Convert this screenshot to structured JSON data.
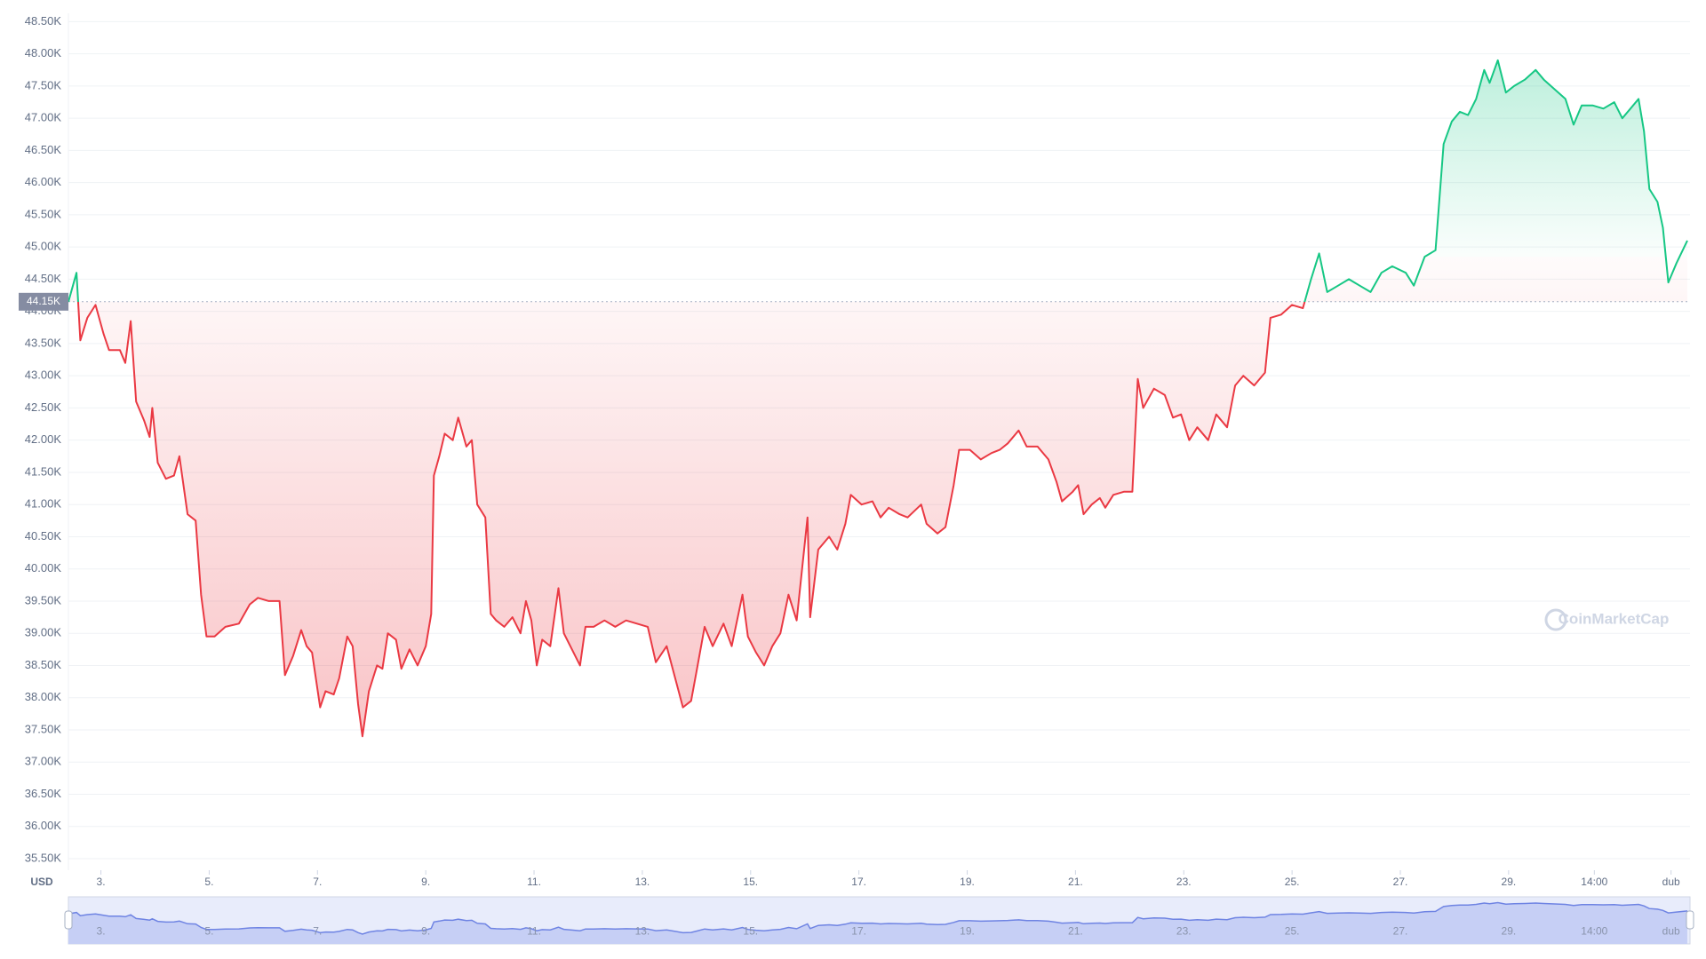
{
  "chart_data": {
    "type": "line",
    "currency": "USD",
    "watermark": "CoinMarketCap",
    "ylim": [
      35320,
      48630
    ],
    "xlim": [
      2.4,
      32.35
    ],
    "grid": true,
    "baseline": {
      "value": 44150,
      "label": "44.15K"
    },
    "up_color": "#16c784",
    "down_color": "#ea3943",
    "yticks": [
      {
        "value": 35500,
        "label": "35.50K"
      },
      {
        "value": 36000,
        "label": "36.00K"
      },
      {
        "value": 36500,
        "label": "36.50K"
      },
      {
        "value": 37000,
        "label": "37.00K"
      },
      {
        "value": 37500,
        "label": "37.50K"
      },
      {
        "value": 38000,
        "label": "38.00K"
      },
      {
        "value": 38500,
        "label": "38.50K"
      },
      {
        "value": 39000,
        "label": "39.00K"
      },
      {
        "value": 39500,
        "label": "39.50K"
      },
      {
        "value": 40000,
        "label": "40.00K"
      },
      {
        "value": 40500,
        "label": "40.50K"
      },
      {
        "value": 41000,
        "label": "41.00K"
      },
      {
        "value": 41500,
        "label": "41.50K"
      },
      {
        "value": 42000,
        "label": "42.00K"
      },
      {
        "value": 42500,
        "label": "42.50K"
      },
      {
        "value": 43000,
        "label": "43.00K"
      },
      {
        "value": 43500,
        "label": "43.50K"
      },
      {
        "value": 44000,
        "label": "44.00K"
      },
      {
        "value": 44500,
        "label": "44.50K"
      },
      {
        "value": 45000,
        "label": "45.00K"
      },
      {
        "value": 45500,
        "label": "45.50K"
      },
      {
        "value": 46000,
        "label": "46.00K"
      },
      {
        "value": 46500,
        "label": "46.50K"
      },
      {
        "value": 47000,
        "label": "47.00K"
      },
      {
        "value": 47500,
        "label": "47.50K"
      },
      {
        "value": 48000,
        "label": "48.00K"
      },
      {
        "value": 48500,
        "label": "48.50K"
      }
    ],
    "xticks": [
      {
        "value": 3,
        "label": "3."
      },
      {
        "value": 5,
        "label": "5."
      },
      {
        "value": 7,
        "label": "7."
      },
      {
        "value": 9,
        "label": "9."
      },
      {
        "value": 11,
        "label": "11."
      },
      {
        "value": 13,
        "label": "13."
      },
      {
        "value": 15,
        "label": "15."
      },
      {
        "value": 17,
        "label": "17."
      },
      {
        "value": 19,
        "label": "19."
      },
      {
        "value": 21,
        "label": "21."
      },
      {
        "value": 23,
        "label": "23."
      },
      {
        "value": 25,
        "label": "25."
      },
      {
        "value": 27,
        "label": "27."
      },
      {
        "value": 29,
        "label": "29."
      },
      {
        "value": 30.583,
        "label": "14:00"
      },
      {
        "value": 32,
        "label": "dub"
      }
    ],
    "x": [
      2.4,
      2.55,
      2.62,
      2.75,
      2.9,
      3.05,
      3.15,
      3.35,
      3.45,
      3.55,
      3.65,
      3.8,
      3.9,
      3.95,
      4.05,
      4.2,
      4.35,
      4.45,
      4.6,
      4.75,
      4.85,
      4.95,
      5.1,
      5.3,
      5.55,
      5.75,
      5.9,
      6.1,
      6.3,
      6.4,
      6.55,
      6.7,
      6.8,
      6.9,
      7.05,
      7.15,
      7.3,
      7.4,
      7.55,
      7.65,
      7.75,
      7.83,
      7.95,
      8.1,
      8.2,
      8.3,
      8.45,
      8.55,
      8.7,
      8.85,
      9.0,
      9.1,
      9.15,
      9.25,
      9.35,
      9.5,
      9.6,
      9.75,
      9.85,
      9.95,
      10.1,
      10.2,
      10.3,
      10.45,
      10.6,
      10.75,
      10.85,
      10.95,
      11.05,
      11.15,
      11.3,
      11.45,
      11.55,
      11.7,
      11.85,
      11.95,
      12.1,
      12.3,
      12.5,
      12.7,
      12.9,
      13.1,
      13.25,
      13.45,
      13.75,
      13.9,
      14.0,
      14.15,
      14.3,
      14.5,
      14.65,
      14.85,
      14.95,
      15.1,
      15.25,
      15.4,
      15.55,
      15.7,
      15.85,
      16.05,
      16.1,
      16.25,
      16.45,
      16.6,
      16.75,
      16.85,
      17.05,
      17.25,
      17.4,
      17.55,
      17.75,
      17.9,
      18.15,
      18.25,
      18.45,
      18.6,
      18.75,
      18.85,
      19.05,
      19.25,
      19.45,
      19.6,
      19.75,
      19.95,
      20.1,
      20.3,
      20.5,
      20.65,
      20.75,
      20.95,
      21.05,
      21.15,
      21.3,
      21.45,
      21.55,
      21.7,
      21.9,
      22.05,
      22.15,
      22.25,
      22.45,
      22.65,
      22.8,
      22.95,
      23.1,
      23.25,
      23.45,
      23.6,
      23.8,
      23.95,
      24.1,
      24.3,
      24.5,
      24.6,
      24.8,
      25.0,
      25.2,
      25.35,
      25.5,
      25.65,
      25.85,
      26.05,
      26.25,
      26.45,
      26.65,
      26.85,
      27.1,
      27.25,
      27.45,
      27.65,
      27.8,
      27.95,
      28.1,
      28.25,
      28.4,
      28.55,
      28.65,
      28.8,
      28.95,
      29.1,
      29.3,
      29.5,
      29.65,
      29.85,
      30.05,
      30.2,
      30.35,
      30.55,
      30.75,
      30.95,
      31.1,
      31.25,
      31.4,
      31.5,
      31.6,
      31.75,
      31.85,
      31.95,
      32.1,
      32.3
    ],
    "values": [
      44150,
      44600,
      43550,
      43900,
      44100,
      43650,
      43400,
      43400,
      43200,
      43850,
      42600,
      42300,
      42050,
      42500,
      41650,
      41400,
      41450,
      41750,
      40850,
      40750,
      39600,
      38950,
      38950,
      39100,
      39150,
      39450,
      39550,
      39500,
      39500,
      38350,
      38650,
      39050,
      38800,
      38700,
      37850,
      38100,
      38050,
      38300,
      38950,
      38800,
      37900,
      37400,
      38100,
      38500,
      38450,
      39000,
      38900,
      38450,
      38750,
      38500,
      38800,
      39300,
      41450,
      41750,
      42100,
      42000,
      42350,
      41900,
      42000,
      41000,
      40800,
      39300,
      39200,
      39100,
      39250,
      39000,
      39500,
      39200,
      38500,
      38900,
      38800,
      39700,
      39000,
      38750,
      38500,
      39100,
      39100,
      39200,
      39100,
      39200,
      39150,
      39100,
      38550,
      38800,
      37850,
      37950,
      38400,
      39100,
      38800,
      39150,
      38800,
      39600,
      38950,
      38700,
      38500,
      38800,
      39000,
      39600,
      39200,
      40800,
      39250,
      40300,
      40500,
      40300,
      40700,
      41150,
      41000,
      41050,
      40800,
      40950,
      40850,
      40800,
      41000,
      40700,
      40550,
      40650,
      41300,
      41850,
      41850,
      41700,
      41800,
      41850,
      41950,
      42150,
      41900,
      41900,
      41700,
      41350,
      41050,
      41200,
      41300,
      40850,
      41000,
      41100,
      40950,
      41150,
      41200,
      41200,
      42950,
      42500,
      42800,
      42700,
      42350,
      42400,
      42000,
      42200,
      42000,
      42400,
      42200,
      42850,
      43000,
      42850,
      43050,
      43900,
      43950,
      44100,
      44050,
      44500,
      44900,
      44300,
      44400,
      44500,
      44400,
      44300,
      44600,
      44700,
      44600,
      44400,
      44850,
      44950,
      46600,
      46950,
      47100,
      47050,
      47300,
      47750,
      47550,
      47900,
      47400,
      47500,
      47600,
      47750,
      47600,
      47450,
      47300,
      46900,
      47200,
      47200,
      47150,
      47250,
      47000,
      47150,
      47300,
      46800,
      45900,
      45700,
      45300,
      44450,
      44750,
      45100
    ]
  }
}
